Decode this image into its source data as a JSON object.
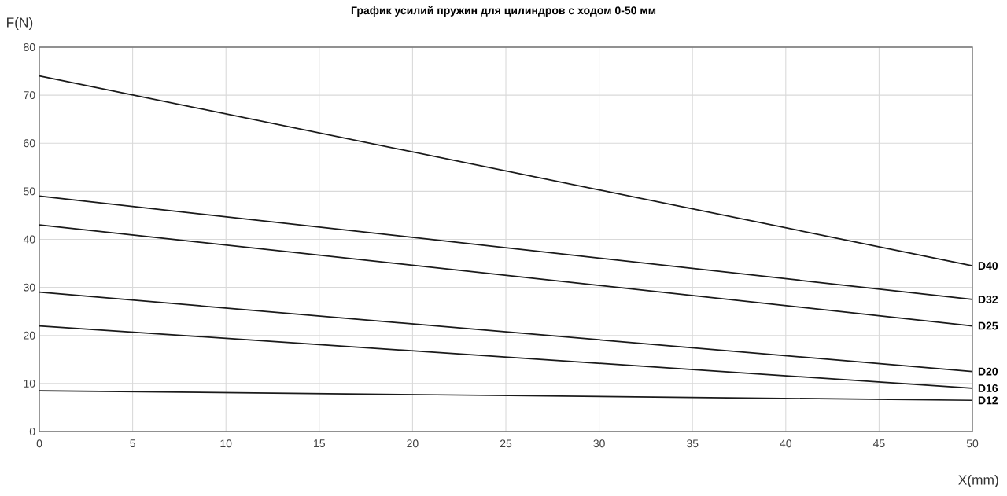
{
  "chart_data": {
    "type": "line",
    "title": "График усилий пружин для цилиндров с ходом 0-50 мм",
    "xlabel": "X(mm)",
    "ylabel": "F(N)",
    "x": [
      0,
      50
    ],
    "series": [
      {
        "name": "D40",
        "color": "#1a1a1a",
        "values": [
          74,
          34.5
        ]
      },
      {
        "name": "D32",
        "color": "#1a1a1a",
        "values": [
          49,
          27.5
        ]
      },
      {
        "name": "D25",
        "color": "#1a1a1a",
        "values": [
          43,
          22
        ]
      },
      {
        "name": "D20",
        "color": "#1a1a1a",
        "values": [
          29,
          12.5
        ]
      },
      {
        "name": "D16",
        "color": "#1a1a1a",
        "values": [
          22,
          9
        ]
      },
      {
        "name": "D12",
        "color": "#1a1a1a",
        "values": [
          8.5,
          6.5
        ]
      }
    ],
    "xlim": [
      0,
      50
    ],
    "ylim": [
      0,
      80
    ],
    "xticks": [
      0,
      5,
      10,
      15,
      20,
      25,
      30,
      35,
      40,
      45,
      50
    ],
    "yticks": [
      0,
      10,
      20,
      30,
      40,
      50,
      60,
      70,
      80
    ],
    "grid": true,
    "marker": "none",
    "line_style": "solid"
  }
}
